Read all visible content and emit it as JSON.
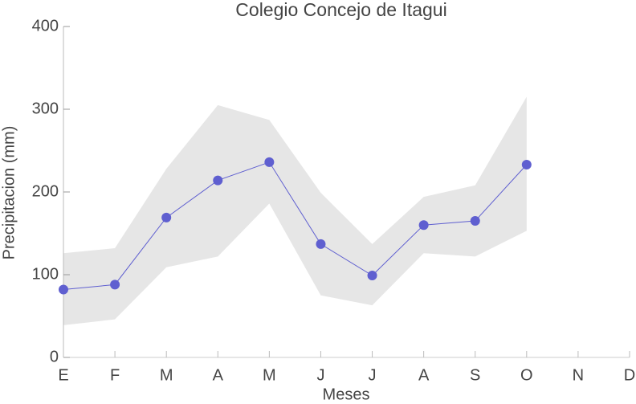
{
  "chart_data": {
    "type": "line",
    "title": "Colegio Concejo de Itagui",
    "x_label": "Meses",
    "y_label": "Precipitacion (mm)",
    "categories": [
      "E",
      "F",
      "M",
      "A",
      "M",
      "J",
      "J",
      "A",
      "S",
      "O",
      "N",
      "D"
    ],
    "series": [
      {
        "color": "#5f5fd0",
        "values": [
          82,
          88,
          169,
          214,
          236,
          137,
          99,
          160,
          165,
          233,
          null,
          null
        ]
      }
    ],
    "band": {
      "color": "#e6e6e6",
      "upper": [
        126,
        132,
        228,
        305,
        287,
        199,
        137,
        194,
        208,
        315,
        null,
        null
      ],
      "lower": [
        39,
        46,
        109,
        122,
        186,
        75,
        63,
        126,
        122,
        153,
        null,
        null
      ]
    },
    "ylim": [
      0,
      400
    ],
    "yticks": [
      0,
      100,
      200,
      300,
      400
    ]
  }
}
